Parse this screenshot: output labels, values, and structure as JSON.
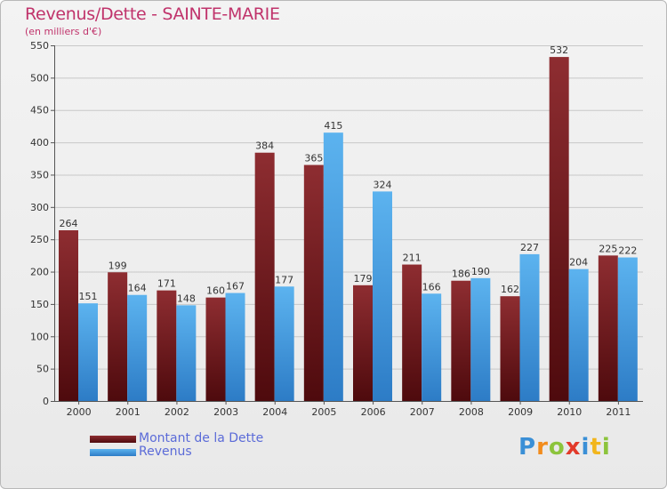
{
  "chart_data": {
    "type": "bar",
    "title": "Revenus/Dette - SAINTE-MARIE",
    "subtitle": "(en milliers d'€)",
    "xlabel": "",
    "ylabel": "",
    "ylim": [
      0,
      550
    ],
    "yticks": [
      0,
      50,
      100,
      150,
      200,
      250,
      300,
      350,
      400,
      450,
      500,
      550
    ],
    "grid": true,
    "legend_position": "bottom-left",
    "categories": [
      "2000",
      "2001",
      "2002",
      "2003",
      "2004",
      "2005",
      "2006",
      "2007",
      "2008",
      "2009",
      "2010",
      "2011"
    ],
    "series": [
      {
        "name": "Montant de la Dette",
        "color": "#7a1e22",
        "values": [
          264,
          199,
          171,
          160,
          384,
          365,
          179,
          211,
          186,
          162,
          532,
          225
        ]
      },
      {
        "name": "Revenus",
        "color": "#4fa6e4",
        "values": [
          151,
          164,
          148,
          167,
          177,
          415,
          324,
          166,
          190,
          227,
          204,
          222
        ]
      }
    ]
  },
  "watermark": {
    "text": "Proxiti",
    "letters": [
      {
        "ch": "P",
        "color": "#3a8fd6"
      },
      {
        "ch": "r",
        "color": "#f28c1c"
      },
      {
        "ch": "o",
        "color": "#8cc43c"
      },
      {
        "ch": "x",
        "color": "#e23a2a"
      },
      {
        "ch": "i",
        "color": "#3a8fd6"
      },
      {
        "ch": "t",
        "color": "#f2b51c"
      },
      {
        "ch": "i",
        "color": "#8cc43c"
      }
    ]
  }
}
